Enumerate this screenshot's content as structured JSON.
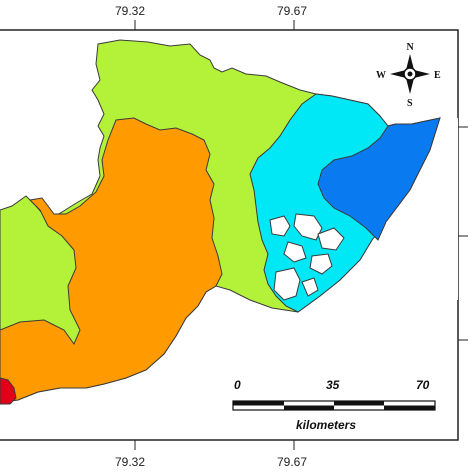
{
  "map": {
    "top_ticks": [
      "79.32",
      "79.67"
    ],
    "bottom_ticks": [
      "79.32",
      "79.67"
    ],
    "compass": {
      "n": "N",
      "s": "S",
      "e": "E",
      "w": "W"
    },
    "scale_bar": {
      "labels": [
        "0",
        "35",
        "70"
      ],
      "unit": "kilometers"
    },
    "zone_colors": {
      "red": "#e0001a",
      "orange": "#ff9a00",
      "yellow_green": "#b4f23a",
      "cyan": "#00e8f6",
      "blue": "#0a7af0"
    }
  }
}
